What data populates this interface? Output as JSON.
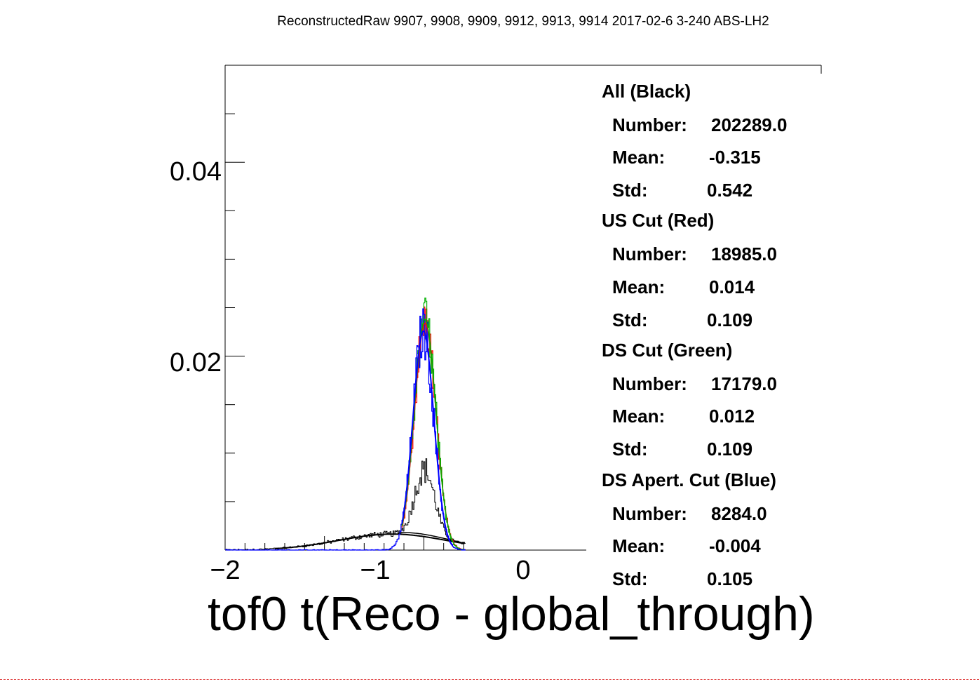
{
  "chart_data": {
    "type": "line",
    "title": "ReconstructedRaw 9907, 9908, 9909, 9912, 9913, 9914 2017-02-6 3-240 ABS-LH2",
    "xlabel": "tof0 t(Reco - global_through)",
    "ylabel": "",
    "xlim": [
      -2,
      4
    ],
    "ylim": [
      0,
      0.05
    ],
    "xticks": [
      "−2",
      "−1",
      "0"
    ],
    "yticks": [
      "0.02",
      "0.04"
    ],
    "grid": false,
    "series": [
      {
        "name": "All (Black)",
        "color": "#000000",
        "gauss": {
          "mu": -0.315,
          "sigma": 0.542,
          "amp": 0.00165
        },
        "peak": {
          "mu": 0.01,
          "sigma": 0.1,
          "amp": 0.0069
        }
      },
      {
        "name": "US Cut (Red)",
        "color": "#ff0000",
        "gauss": {
          "mu": 0.014,
          "sigma": 0.109,
          "amp": 0.0234
        }
      },
      {
        "name": "DS Cut (Green)",
        "color": "#00b000",
        "gauss": {
          "mu": 0.012,
          "sigma": 0.109,
          "amp": 0.0238
        }
      },
      {
        "name": "DS Apert. Cut (Blue)",
        "color": "#0000ff",
        "gauss": {
          "mu": -0.004,
          "sigma": 0.105,
          "amp": 0.0226
        }
      }
    ]
  },
  "stats": [
    {
      "label": "All (Black)",
      "number": "202289.0",
      "mean": "-0.315",
      "std": "0.542"
    },
    {
      "label": "US Cut (Red)",
      "number": "18985.0",
      "mean": "0.014",
      "std": "0.109"
    },
    {
      "label": "DS Cut (Green)",
      "number": "17179.0",
      "mean": "0.012",
      "std": "0.109"
    },
    {
      "label": "DS Apert. Cut (Blue)",
      "number": "8284.0",
      "mean": "-0.004",
      "std": "0.105"
    }
  ],
  "labels": {
    "number": "Number:",
    "mean": "Mean:",
    "std": "Std:"
  }
}
